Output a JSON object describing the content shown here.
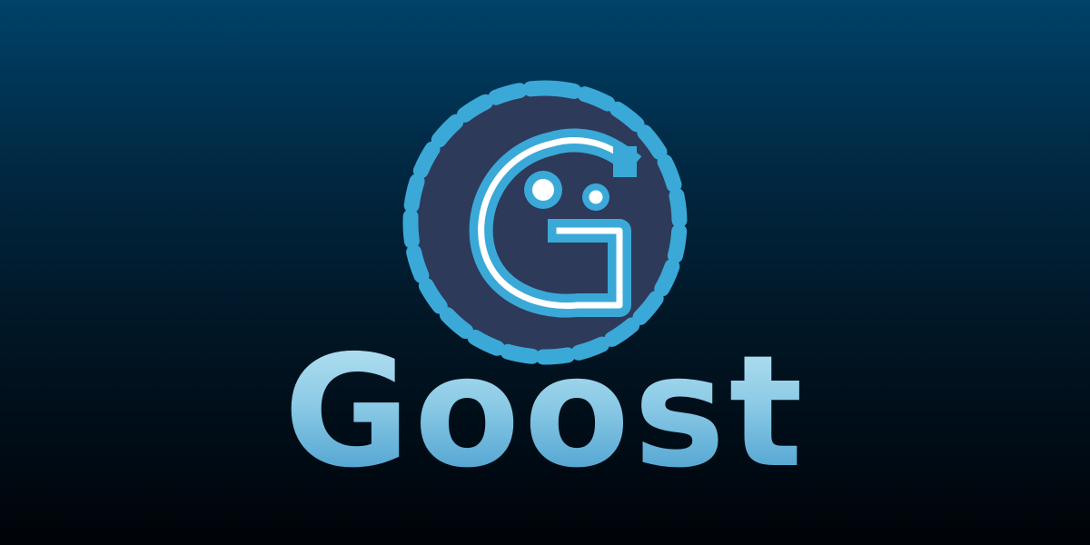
{
  "brand": {
    "name": "Goost",
    "logo_letter": "G",
    "colors": {
      "accent": "#3aa9d8",
      "ring_fill": "#2e3a5a",
      "wordmark_top": "#bfe5f3",
      "wordmark_bottom": "#3a94c9",
      "background_top": "#00426a",
      "background_bottom": "#000308"
    }
  }
}
